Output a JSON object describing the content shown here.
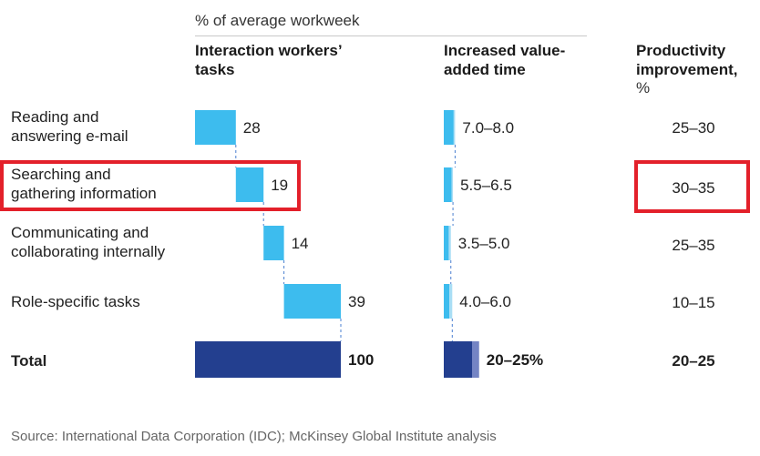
{
  "chart_data": {
    "type": "bar",
    "subtitle": "% of average workweek",
    "columns": {
      "tasks_header": "Interaction workers’ tasks",
      "value_added_header": "Increased value-added time",
      "productivity_header": "Productivity improvement,",
      "productivity_unit": "%"
    },
    "categories": [
      "Reading and answering e-mail",
      "Searching and gathering information",
      "Communicating and collaborating internally",
      "Role-specific tasks"
    ],
    "category_lines": [
      [
        "Reading and",
        "answering e-mail"
      ],
      [
        "Searching and",
        "gathering information"
      ],
      [
        "Communicating and",
        "collaborating internally"
      ],
      [
        "Role-specific tasks"
      ]
    ],
    "values": [
      28,
      19,
      14,
      39
    ],
    "value_added_ranges": [
      [
        7.0,
        8.0
      ],
      [
        5.5,
        6.5
      ],
      [
        3.5,
        5.0
      ],
      [
        4.0,
        6.0
      ]
    ],
    "value_added_labels": [
      "7.0–8.0",
      "5.5–6.5",
      "3.5–5.0",
      "4.0–6.0"
    ],
    "productivity_labels": [
      "25–30",
      "30–35",
      "25–35",
      "10–15"
    ],
    "total": {
      "label": "Total",
      "value": 100,
      "value_label": "100",
      "value_added_range": [
        20,
        25
      ],
      "value_added_label": "20–25%",
      "productivity_label": "20–25"
    },
    "highlighted_index": 1,
    "colors": {
      "bar": "#3dbcee",
      "total": "#233f8f",
      "total_range": "#7484c4",
      "connector": "#4a7fd0",
      "highlight": "#e3202a"
    }
  },
  "source": "Source: International Data Corporation (IDC); McKinsey Global Institute analysis"
}
